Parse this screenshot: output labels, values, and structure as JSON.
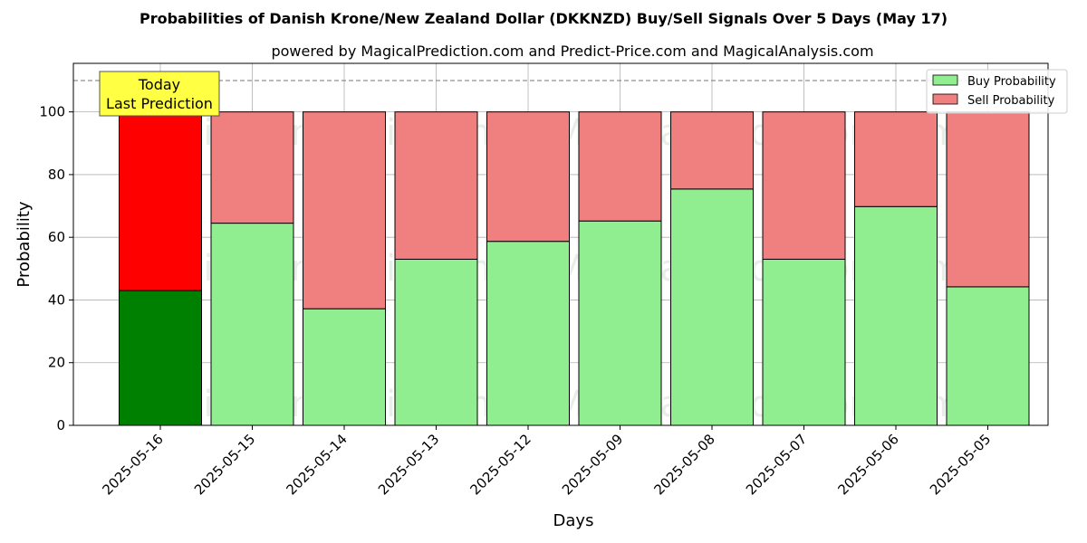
{
  "chart_data": {
    "type": "bar",
    "stacked": true,
    "title": "Probabilities of Danish Krone/New Zealand Dollar (DKKNZD) Buy/Sell Signals Over 5 Days (May 17)",
    "subtitle": "powered by MagicalPrediction.com and Predict-Price.com and MagicalAnalysis.com",
    "xlabel": "Days",
    "ylabel": "Probability",
    "ylim": [
      0,
      115
    ],
    "yticks": [
      0,
      20,
      40,
      60,
      80,
      100
    ],
    "grid": true,
    "legend_position": "top-right",
    "reference_line": 110,
    "categories": [
      "2025-05-16",
      "2025-05-15",
      "2025-05-14",
      "2025-05-13",
      "2025-05-12",
      "2025-05-09",
      "2025-05-08",
      "2025-05-07",
      "2025-05-06",
      "2025-05-05"
    ],
    "series": [
      {
        "name": "Buy Probability",
        "color": "#90ee90",
        "highlight_color": "#008000",
        "values": [
          43,
          64.5,
          37.2,
          53,
          58.7,
          65.2,
          75.4,
          53,
          69.8,
          44.2
        ]
      },
      {
        "name": "Sell Probability",
        "color": "#f08080",
        "highlight_color": "#ff0000",
        "values": [
          57,
          35.5,
          62.8,
          47,
          41.3,
          34.8,
          24.6,
          47,
          30.2,
          55.8
        ]
      }
    ],
    "annotation": {
      "line1": "Today",
      "line2": "Last Prediction",
      "color": "#ffff44"
    },
    "watermarks": [
      "MagicalAnalysis.com",
      "MagicalPrediction.com"
    ]
  }
}
